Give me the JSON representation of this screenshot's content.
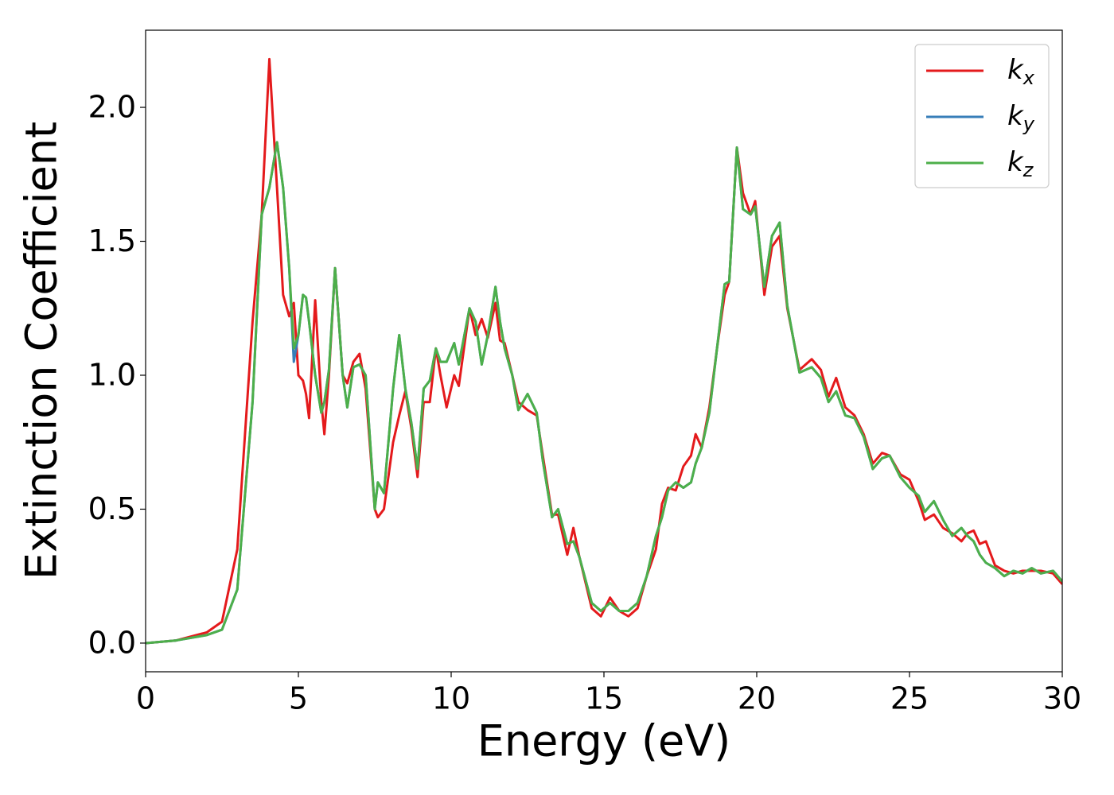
{
  "chart_data": {
    "type": "line",
    "xlabel": "Energy (eV)",
    "ylabel": "Extinction Coefficient",
    "xlim": [
      0,
      30
    ],
    "ylim": [
      -0.107,
      2.288
    ],
    "xticks": [
      0,
      5,
      10,
      15,
      20,
      25,
      30
    ],
    "yticks": [
      {
        "value": 0,
        "label": "0.0"
      },
      {
        "value": 0.5,
        "label": "0.5"
      },
      {
        "value": 1,
        "label": "1.0"
      },
      {
        "value": 1.5,
        "label": "1.5"
      },
      {
        "value": 2,
        "label": "2.0"
      }
    ],
    "legend": "upper right",
    "x": [
      0,
      1,
      2,
      2.5,
      3,
      3.5,
      3.8,
      4.05,
      4.3,
      4.5,
      4.7,
      4.85,
      5.0,
      5.15,
      5.25,
      5.35,
      5.55,
      5.75,
      5.85,
      6.0,
      6.2,
      6.45,
      6.6,
      6.8,
      7.0,
      7.2,
      7.5,
      7.6,
      7.8,
      8.1,
      8.3,
      8.5,
      8.7,
      8.9,
      9.1,
      9.3,
      9.5,
      9.65,
      9.85,
      10.1,
      10.25,
      10.6,
      10.8,
      11.0,
      11.2,
      11.45,
      11.6,
      11.75,
      12.0,
      12.2,
      12.5,
      12.8,
      13.0,
      13.3,
      13.5,
      13.8,
      14.0,
      14.2,
      14.6,
      14.9,
      15.2,
      15.5,
      15.8,
      16.1,
      16.4,
      16.7,
      16.9,
      17.1,
      17.35,
      17.6,
      17.85,
      18.0,
      18.2,
      18.45,
      18.7,
      18.95,
      19.1,
      19.35,
      19.55,
      19.8,
      19.95,
      20.25,
      20.5,
      20.75,
      21.0,
      21.4,
      21.8,
      22.1,
      22.35,
      22.6,
      22.9,
      23.2,
      23.5,
      23.8,
      24.1,
      24.35,
      24.7,
      25.0,
      25.3,
      25.5,
      25.8,
      26.1,
      26.4,
      26.7,
      26.9,
      27.1,
      27.3,
      27.5,
      27.8,
      28.1,
      28.4,
      28.7,
      29.0,
      29.3,
      29.7,
      30
    ],
    "series": [
      {
        "name": "kx",
        "color": "#e41a1c",
        "values": [
          0,
          0.01,
          0.04,
          0.08,
          0.35,
          1.2,
          1.6,
          2.18,
          1.7,
          1.3,
          1.22,
          1.27,
          1.0,
          0.98,
          0.93,
          0.84,
          1.28,
          0.9,
          0.78,
          1.0,
          1.4,
          1.0,
          0.97,
          1.05,
          1.08,
          0.95,
          0.5,
          0.47,
          0.5,
          0.75,
          0.85,
          0.94,
          0.8,
          0.62,
          0.9,
          0.9,
          1.1,
          1.0,
          0.88,
          1.0,
          0.96,
          1.25,
          1.15,
          1.21,
          1.14,
          1.27,
          1.13,
          1.12,
          1.0,
          0.9,
          0.87,
          0.85,
          0.7,
          0.48,
          0.48,
          0.33,
          0.43,
          0.32,
          0.13,
          0.1,
          0.17,
          0.12,
          0.1,
          0.13,
          0.25,
          0.35,
          0.52,
          0.58,
          0.57,
          0.66,
          0.7,
          0.78,
          0.73,
          0.88,
          1.1,
          1.3,
          1.35,
          1.85,
          1.68,
          1.6,
          1.65,
          1.3,
          1.48,
          1.52,
          1.25,
          1.02,
          1.06,
          1.02,
          0.92,
          0.99,
          0.88,
          0.85,
          0.78,
          0.67,
          0.71,
          0.7,
          0.63,
          0.61,
          0.53,
          0.46,
          0.48,
          0.43,
          0.41,
          0.38,
          0.41,
          0.42,
          0.37,
          0.38,
          0.29,
          0.27,
          0.26,
          0.27,
          0.27,
          0.27,
          0.26,
          0.22
        ]
      },
      {
        "name": "ky",
        "color": "#377eb8",
        "values": [
          0,
          0.01,
          0.03,
          0.05,
          0.2,
          0.9,
          1.6,
          1.7,
          1.87,
          1.7,
          1.4,
          1.05,
          1.15,
          1.3,
          1.29,
          1.2,
          1.0,
          0.86,
          0.9,
          1.02,
          1.4,
          1.0,
          0.88,
          1.03,
          1.04,
          1.0,
          0.5,
          0.6,
          0.56,
          0.95,
          1.15,
          0.95,
          0.82,
          0.65,
          0.95,
          0.98,
          1.1,
          1.05,
          1.05,
          1.12,
          1.04,
          1.25,
          1.2,
          1.04,
          1.15,
          1.33,
          1.2,
          1.1,
          1.0,
          0.87,
          0.93,
          0.86,
          0.68,
          0.47,
          0.5,
          0.37,
          0.38,
          0.32,
          0.15,
          0.12,
          0.15,
          0.12,
          0.12,
          0.15,
          0.25,
          0.4,
          0.47,
          0.57,
          0.6,
          0.58,
          0.6,
          0.67,
          0.73,
          0.86,
          1.1,
          1.34,
          1.35,
          1.85,
          1.62,
          1.6,
          1.63,
          1.33,
          1.52,
          1.57,
          1.26,
          1.01,
          1.03,
          0.99,
          0.9,
          0.94,
          0.85,
          0.84,
          0.77,
          0.65,
          0.69,
          0.7,
          0.62,
          0.58,
          0.55,
          0.49,
          0.53,
          0.46,
          0.4,
          0.43,
          0.4,
          0.38,
          0.33,
          0.3,
          0.28,
          0.25,
          0.27,
          0.26,
          0.28,
          0.26,
          0.27,
          0.23
        ]
      },
      {
        "name": "kz",
        "color": "#4daf4a",
        "values": [
          0,
          0.01,
          0.03,
          0.05,
          0.2,
          0.9,
          1.6,
          1.7,
          1.87,
          1.7,
          1.4,
          1.1,
          1.15,
          1.3,
          1.29,
          1.2,
          1.0,
          0.86,
          0.9,
          1.02,
          1.4,
          1.0,
          0.88,
          1.03,
          1.04,
          1.0,
          0.5,
          0.6,
          0.56,
          0.95,
          1.15,
          0.95,
          0.82,
          0.65,
          0.95,
          0.98,
          1.1,
          1.05,
          1.05,
          1.12,
          1.04,
          1.25,
          1.2,
          1.04,
          1.15,
          1.33,
          1.2,
          1.1,
          1.0,
          0.87,
          0.93,
          0.86,
          0.68,
          0.47,
          0.5,
          0.37,
          0.38,
          0.32,
          0.15,
          0.12,
          0.15,
          0.12,
          0.12,
          0.15,
          0.25,
          0.4,
          0.47,
          0.57,
          0.6,
          0.58,
          0.6,
          0.67,
          0.73,
          0.86,
          1.1,
          1.34,
          1.35,
          1.85,
          1.62,
          1.6,
          1.63,
          1.33,
          1.52,
          1.57,
          1.26,
          1.01,
          1.03,
          0.99,
          0.9,
          0.94,
          0.85,
          0.84,
          0.77,
          0.65,
          0.69,
          0.7,
          0.62,
          0.58,
          0.55,
          0.49,
          0.53,
          0.46,
          0.4,
          0.43,
          0.4,
          0.38,
          0.33,
          0.3,
          0.28,
          0.25,
          0.27,
          0.26,
          0.28,
          0.26,
          0.27,
          0.23
        ]
      }
    ]
  }
}
